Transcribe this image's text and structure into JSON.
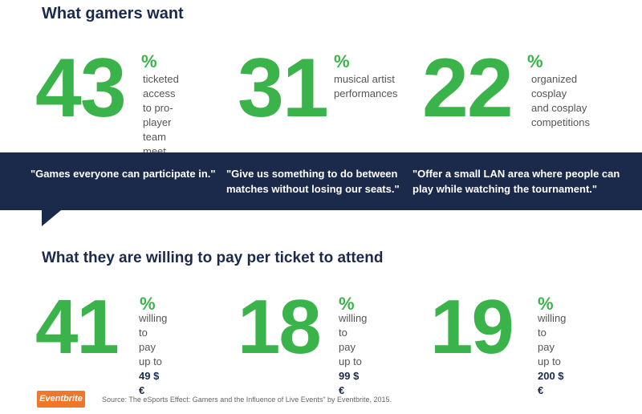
{
  "heading_top": "What gamers want",
  "top_stats": [
    {
      "value": "43",
      "unit": "%",
      "lines": [
        "ticketed access",
        "to pro-player team",
        "meet and greets"
      ]
    },
    {
      "value": "31",
      "unit": "%",
      "lines": [
        "musical artist",
        "performances"
      ]
    },
    {
      "value": "22",
      "unit": "%",
      "lines": [
        "organized cosplay",
        "and cosplay",
        "competitions"
      ]
    }
  ],
  "quotes": [
    "\"Games everyone can participate in.\"",
    "\"Give us something to do between matches without losing our seats.\"",
    "\"Offer a small LAN area where people can play while watching the tournament.\""
  ],
  "heading_bottom": "What they are willing to pay per ticket to attend",
  "bottom_stats": [
    {
      "value": "41",
      "unit": "%",
      "line1": "willing to",
      "line2": "pay up to",
      "price": "49 $ €"
    },
    {
      "value": "18",
      "unit": "%",
      "line1": "willing to",
      "line2": "pay up to",
      "price": "99 $ €"
    },
    {
      "value": "19",
      "unit": "%",
      "line1": "willing to",
      "line2": "pay up to",
      "price": "200 $ €"
    }
  ],
  "logo_text": "Eventbrite",
  "source_text": "Source: The eSports Effect: Gamers and the Influence of Live Events\" by Eventbrite, 2015.",
  "colors": {
    "accent_green": "#3ab44a",
    "navy": "#1b2a4a",
    "brand_orange": "#f0762a"
  }
}
